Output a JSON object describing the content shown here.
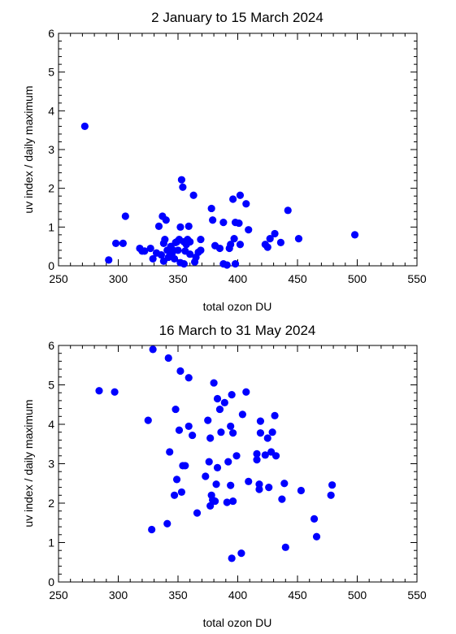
{
  "chart_data": [
    {
      "type": "scatter",
      "title": "2 January to 15 March 2024",
      "xlabel": "total ozon DU",
      "ylabel": "uv index / daily maximum",
      "xlim": [
        250,
        550
      ],
      "ylim": [
        0,
        6
      ],
      "xticks": [
        250,
        300,
        350,
        400,
        450,
        500,
        550
      ],
      "yticks": [
        0,
        1,
        2,
        3,
        4,
        5,
        6
      ],
      "marker_color": "#0000ff",
      "grid": false,
      "points": [
        [
          272,
          3.6
        ],
        [
          292,
          0.15
        ],
        [
          298,
          0.58
        ],
        [
          304,
          0.58
        ],
        [
          306,
          1.28
        ],
        [
          318,
          0.45
        ],
        [
          320,
          0.38
        ],
        [
          322,
          0.38
        ],
        [
          327,
          0.45
        ],
        [
          329,
          0.18
        ],
        [
          332,
          0.33
        ],
        [
          334,
          1.02
        ],
        [
          336,
          0.28
        ],
        [
          337,
          1.28
        ],
        [
          338,
          0.58
        ],
        [
          338,
          0.12
        ],
        [
          339,
          0.68
        ],
        [
          340,
          1.18
        ],
        [
          341,
          0.4
        ],
        [
          342,
          0.22
        ],
        [
          344,
          0.5
        ],
        [
          345,
          0.32
        ],
        [
          346,
          0.4
        ],
        [
          347,
          0.18
        ],
        [
          348,
          0.6
        ],
        [
          349,
          0.62
        ],
        [
          350,
          0.4
        ],
        [
          351,
          0.68
        ],
        [
          352,
          1.0
        ],
        [
          352,
          0.08
        ],
        [
          353,
          2.22
        ],
        [
          354,
          2.03
        ],
        [
          355,
          0.62
        ],
        [
          355,
          0.05
        ],
        [
          356,
          0.38
        ],
        [
          357,
          0.55
        ],
        [
          358,
          0.68
        ],
        [
          359,
          1.02
        ],
        [
          360,
          0.3
        ],
        [
          360,
          0.62
        ],
        [
          363,
          1.82
        ],
        [
          364,
          0.1
        ],
        [
          365,
          0.22
        ],
        [
          367,
          0.35
        ],
        [
          369,
          0.4
        ],
        [
          369,
          0.68
        ],
        [
          378,
          1.48
        ],
        [
          379,
          1.18
        ],
        [
          381,
          0.52
        ],
        [
          385,
          0.45
        ],
        [
          388,
          0.05
        ],
        [
          388,
          1.12
        ],
        [
          391,
          0.02
        ],
        [
          393,
          0.45
        ],
        [
          394,
          0.55
        ],
        [
          396,
          1.72
        ],
        [
          397,
          0.7
        ],
        [
          398,
          1.12
        ],
        [
          398,
          0.05
        ],
        [
          401,
          1.1
        ],
        [
          402,
          1.82
        ],
        [
          402,
          0.55
        ],
        [
          407,
          1.6
        ],
        [
          409,
          0.93
        ],
        [
          423,
          0.55
        ],
        [
          425,
          0.48
        ],
        [
          427,
          0.7
        ],
        [
          431,
          0.83
        ],
        [
          436,
          0.6
        ],
        [
          442,
          1.43
        ],
        [
          451,
          0.7
        ],
        [
          498,
          0.8
        ]
      ]
    },
    {
      "type": "scatter",
      "title": "16 March to 31 May 2024",
      "xlabel": "total ozon DU",
      "ylabel": "uv index / daily maximum",
      "xlim": [
        250,
        550
      ],
      "ylim": [
        0,
        6
      ],
      "xticks": [
        250,
        300,
        350,
        400,
        450,
        500,
        550
      ],
      "yticks": [
        0,
        1,
        2,
        3,
        4,
        5,
        6
      ],
      "marker_color": "#0000ff",
      "grid": false,
      "points": [
        [
          284,
          4.85
        ],
        [
          297,
          4.82
        ],
        [
          325,
          4.1
        ],
        [
          328,
          1.33
        ],
        [
          329,
          5.9
        ],
        [
          341,
          1.48
        ],
        [
          342,
          5.68
        ],
        [
          343,
          3.3
        ],
        [
          347,
          2.2
        ],
        [
          348,
          4.38
        ],
        [
          349,
          2.6
        ],
        [
          351,
          3.85
        ],
        [
          352,
          5.35
        ],
        [
          353,
          2.28
        ],
        [
          354,
          2.95
        ],
        [
          356,
          2.95
        ],
        [
          359,
          3.95
        ],
        [
          359,
          5.18
        ],
        [
          362,
          3.72
        ],
        [
          366,
          1.75
        ],
        [
          373,
          2.68
        ],
        [
          375,
          4.1
        ],
        [
          376,
          3.05
        ],
        [
          377,
          1.93
        ],
        [
          377,
          3.65
        ],
        [
          378,
          2.2
        ],
        [
          379,
          2.08
        ],
        [
          380,
          5.05
        ],
        [
          381,
          2.05
        ],
        [
          382,
          2.48
        ],
        [
          383,
          2.9
        ],
        [
          383,
          4.65
        ],
        [
          385,
          4.38
        ],
        [
          386,
          3.8
        ],
        [
          389,
          4.55
        ],
        [
          391,
          2.02
        ],
        [
          392,
          3.05
        ],
        [
          394,
          2.45
        ],
        [
          394,
          3.95
        ],
        [
          395,
          4.75
        ],
        [
          396,
          3.78
        ],
        [
          395,
          0.6
        ],
        [
          396,
          2.05
        ],
        [
          399,
          3.2
        ],
        [
          403,
          0.73
        ],
        [
          404,
          4.25
        ],
        [
          407,
          4.82
        ],
        [
          409,
          2.55
        ],
        [
          416,
          3.1
        ],
        [
          416,
          3.25
        ],
        [
          418,
          2.35
        ],
        [
          418,
          2.48
        ],
        [
          419,
          3.78
        ],
        [
          419,
          4.08
        ],
        [
          423,
          3.22
        ],
        [
          425,
          3.65
        ],
        [
          426,
          2.4
        ],
        [
          428,
          3.3
        ],
        [
          429,
          3.8
        ],
        [
          431,
          4.22
        ],
        [
          432,
          3.2
        ],
        [
          437,
          2.1
        ],
        [
          439,
          2.5
        ],
        [
          440,
          0.88
        ],
        [
          453,
          2.32
        ],
        [
          464,
          1.6
        ],
        [
          466,
          1.15
        ],
        [
          478,
          2.2
        ],
        [
          479,
          2.46
        ]
      ]
    }
  ]
}
